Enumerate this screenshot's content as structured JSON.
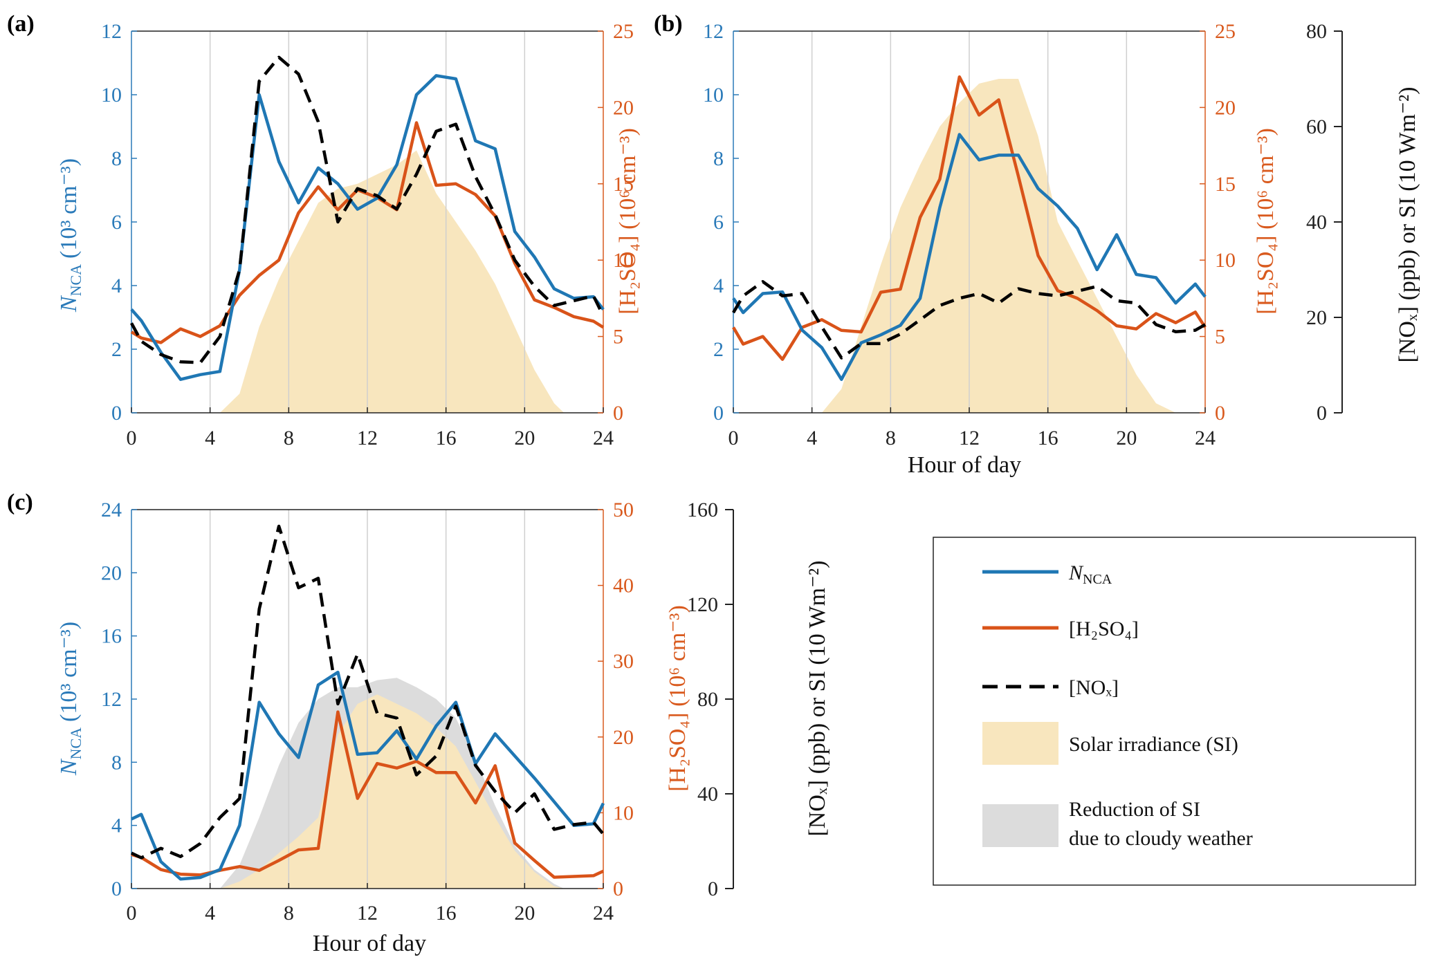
{
  "colors": {
    "nnca": "#1f77b4",
    "h2so4": "#d95319",
    "nox": "#000000",
    "si": "#f8e6be",
    "si_reduction": "#dcdcdc",
    "tick_blue": "#2a7ab9",
    "tick_red": "#d95a1e"
  },
  "chart_data": [
    {
      "panel": "(a)",
      "type": "line",
      "xlabel": "",
      "xlim": [
        0,
        24
      ],
      "xticks": [
        "0",
        "4",
        "8",
        "12",
        "16",
        "20",
        "24"
      ],
      "left_axis": {
        "label_main": "N",
        "label_sub": "NCA",
        "label_unit": "(10³ cm⁻³)",
        "ylim": [
          0,
          12
        ],
        "ticks": [
          "0",
          "2",
          "4",
          "6",
          "8",
          "10",
          "12"
        ]
      },
      "right_axis": {
        "label": "[H₂SO₄] (10⁶ cm⁻³)",
        "ylim": [
          0,
          25
        ],
        "ticks": [
          "0",
          "5",
          "10",
          "15",
          "20",
          "25"
        ]
      },
      "nox_si_axis_ylim": [
        0,
        80
      ],
      "series": [
        {
          "name": "N_NCA",
          "axis": "left",
          "x": [
            0,
            0.5,
            1.5,
            2.5,
            3.5,
            4.5,
            5.5,
            6.5,
            7.5,
            8.5,
            9.5,
            10.5,
            11.5,
            12.5,
            13.5,
            14.5,
            15.5,
            16.5,
            17.5,
            18.5,
            19.5,
            20.5,
            21.5,
            22.5,
            23.5,
            24
          ],
          "y": [
            3.25,
            2.9,
            1.9,
            1.05,
            1.2,
            1.3,
            4.5,
            10.0,
            7.9,
            6.6,
            7.7,
            7.2,
            6.4,
            6.75,
            7.8,
            10.0,
            10.6,
            10.5,
            8.55,
            8.3,
            5.7,
            4.9,
            3.9,
            3.6,
            3.65,
            3.25
          ]
        },
        {
          "name": "[H2SO4]",
          "axis": "right",
          "x": [
            0,
            0.5,
            1.5,
            2.5,
            3.5,
            4.5,
            5.5,
            6.5,
            7.5,
            8.5,
            9.5,
            10.5,
            11.5,
            12.5,
            13.5,
            14.5,
            15.5,
            16.5,
            17.5,
            18.5,
            19.5,
            20.5,
            21.5,
            22.5,
            23.5,
            24
          ],
          "y": [
            5.3,
            4.9,
            4.6,
            5.5,
            5.0,
            5.7,
            7.7,
            9.0,
            10.0,
            13.1,
            14.8,
            13.3,
            14.6,
            14.1,
            13.3,
            19.0,
            14.9,
            15.0,
            14.3,
            12.9,
            9.8,
            7.4,
            6.9,
            6.3,
            6.0,
            5.6
          ]
        },
        {
          "name": "[NOx]",
          "axis": "nox_si",
          "x": [
            0,
            0.5,
            1.5,
            2.5,
            3.5,
            4.5,
            5.5,
            6.5,
            7.5,
            8.5,
            9.5,
            10.5,
            11.5,
            12.5,
            13.5,
            14.5,
            15.5,
            16.5,
            17.5,
            18.5,
            19.5,
            20.5,
            21.5,
            22.5,
            23.5,
            24
          ],
          "y": [
            18.8,
            15.0,
            12.2,
            10.7,
            10.5,
            16.0,
            30.0,
            69.5,
            74.5,
            71.0,
            61.0,
            40.0,
            47.0,
            45.5,
            42.7,
            50.0,
            59.0,
            60.5,
            49.5,
            41.5,
            32.0,
            26.5,
            22.5,
            23.5,
            24.5,
            20.3
          ]
        },
        {
          "name": "Solar irradiance (SI)",
          "axis": "nox_si",
          "kind": "area",
          "x": [
            4.5,
            5.5,
            6.5,
            7.5,
            8.5,
            9.5,
            10.5,
            11.5,
            12.5,
            13.5,
            14.5,
            15.5,
            16.5,
            17.5,
            18.5,
            19.5,
            20.5,
            21.5,
            22.0
          ],
          "y": [
            0,
            4,
            18,
            28,
            36,
            44,
            47,
            48,
            50,
            52,
            55,
            46,
            40,
            34,
            27,
            18,
            9,
            2,
            0
          ]
        }
      ]
    },
    {
      "panel": "(b)",
      "type": "line",
      "xlabel": "Hour of day",
      "xlim": [
        0,
        24
      ],
      "xticks": [
        "0",
        "4",
        "8",
        "12",
        "16",
        "20",
        "24"
      ],
      "left_axis": {
        "ylim": [
          0,
          12
        ],
        "ticks": [
          "0",
          "2",
          "4",
          "6",
          "8",
          "10",
          "12"
        ]
      },
      "right_axis": {
        "label": "[H₂SO₄] (10⁶ cm⁻³)",
        "ylim": [
          0,
          25
        ],
        "ticks": [
          "0",
          "5",
          "10",
          "15",
          "20",
          "25"
        ]
      },
      "third_axis": {
        "label": "[NOₓ] (ppb) or SI (10 Wm⁻²)",
        "ylim": [
          0,
          80
        ],
        "ticks": [
          "0",
          "20",
          "40",
          "60",
          "80"
        ]
      },
      "series": [
        {
          "name": "N_NCA",
          "axis": "left",
          "x": [
            0,
            0.5,
            1.5,
            2.5,
            3.5,
            4.5,
            5.5,
            6.5,
            7.5,
            8.5,
            9.5,
            10.5,
            11.5,
            12.5,
            13.5,
            14.5,
            15.5,
            16.5,
            17.5,
            18.5,
            19.5,
            20.5,
            21.5,
            22.5,
            23.5,
            24
          ],
          "y": [
            3.6,
            3.15,
            3.75,
            3.8,
            2.6,
            2.05,
            1.05,
            2.2,
            2.45,
            2.75,
            3.6,
            6.45,
            8.75,
            7.95,
            8.1,
            8.1,
            7.05,
            6.5,
            5.8,
            4.5,
            5.6,
            4.35,
            4.25,
            3.45,
            4.05,
            3.65
          ]
        },
        {
          "name": "[H2SO4]",
          "axis": "right",
          "x": [
            0,
            0.5,
            1.5,
            2.5,
            3.5,
            4.5,
            5.5,
            6.5,
            7.5,
            8.5,
            9.5,
            10.5,
            11.5,
            12.5,
            13.5,
            14.5,
            15.5,
            16.5,
            17.5,
            18.5,
            19.5,
            20.5,
            21.5,
            22.5,
            23.5,
            24
          ],
          "y": [
            5.6,
            4.5,
            5.0,
            3.5,
            5.6,
            6.1,
            5.4,
            5.3,
            7.9,
            8.1,
            12.8,
            15.3,
            22.0,
            19.5,
            20.5,
            15.5,
            10.3,
            8.0,
            7.5,
            6.7,
            5.7,
            5.5,
            6.5,
            5.9,
            6.6,
            5.6
          ]
        },
        {
          "name": "[NOx]",
          "axis": "third",
          "x": [
            0,
            0.5,
            1.5,
            2.5,
            3.5,
            4.5,
            5.5,
            6.5,
            7.5,
            8.5,
            9.5,
            10.5,
            11.5,
            12.5,
            13.5,
            14.5,
            15.5,
            16.5,
            17.5,
            18.5,
            19.5,
            20.5,
            21.5,
            22.5,
            23.5,
            24
          ],
          "y": [
            21.0,
            24.5,
            27.5,
            24.5,
            25.0,
            18.0,
            11.5,
            14.5,
            14.5,
            16.5,
            19.5,
            22.5,
            24.0,
            25.0,
            23.0,
            26.0,
            25.0,
            24.5,
            25.5,
            26.5,
            23.5,
            23.0,
            18.5,
            17.0,
            17.3,
            18.5
          ]
        },
        {
          "name": "Solar irradiance (SI)",
          "axis": "third",
          "kind": "area",
          "x": [
            4.5,
            5.5,
            6.5,
            7.5,
            8.5,
            9.5,
            10.5,
            11.5,
            12.5,
            13.5,
            14.5,
            15.5,
            16.5,
            17.5,
            18.5,
            19.5,
            20.5,
            21.5,
            22.5
          ],
          "y": [
            0,
            5,
            18,
            31,
            43,
            52,
            60,
            65,
            69,
            70,
            70,
            58,
            40,
            32,
            24,
            16,
            8,
            2,
            0
          ]
        }
      ]
    },
    {
      "panel": "(c)",
      "type": "line",
      "xlabel": "Hour of day",
      "xlim": [
        0,
        24
      ],
      "xticks": [
        "0",
        "4",
        "8",
        "12",
        "16",
        "20",
        "24"
      ],
      "left_axis": {
        "label_main": "N",
        "label_sub": "NCA",
        "label_unit": "(10³ cm⁻³)",
        "ylim": [
          0,
          24
        ],
        "ticks": [
          "0",
          "4",
          "8",
          "12",
          "16",
          "20",
          "24"
        ]
      },
      "right_axis": {
        "label": "[H₂SO₄] (10⁶ cm⁻³)",
        "ylim": [
          0,
          50
        ],
        "ticks": [
          "0",
          "10",
          "20",
          "30",
          "40",
          "50"
        ]
      },
      "third_axis": {
        "label": "[NOₓ] (ppb) or SI (10 Wm⁻²)",
        "ylim": [
          0,
          160
        ],
        "ticks": [
          "0",
          "40",
          "80",
          "120",
          "160"
        ]
      },
      "series": [
        {
          "name": "N_NCA",
          "axis": "left",
          "x": [
            0,
            0.5,
            1.5,
            2.5,
            3.5,
            4.5,
            5.5,
            6.5,
            7.5,
            8.5,
            9.5,
            10.5,
            11.5,
            12.5,
            13.5,
            14.5,
            15.5,
            16.5,
            17.5,
            18.5,
            19.5,
            20.5,
            21.5,
            22.5,
            23.5,
            24
          ],
          "y": [
            4.4,
            4.7,
            1.7,
            0.6,
            0.7,
            1.2,
            4.0,
            11.8,
            9.8,
            8.3,
            12.9,
            13.7,
            8.5,
            8.6,
            10.0,
            8.2,
            10.3,
            11.8,
            7.9,
            9.8,
            8.4,
            7.0,
            5.5,
            4.0,
            4.1,
            5.4
          ]
        },
        {
          "name": "[H2SO4]",
          "axis": "right",
          "x": [
            0,
            0.5,
            1.5,
            2.5,
            3.5,
            4.5,
            5.5,
            6.5,
            7.5,
            8.5,
            9.5,
            10.5,
            11.5,
            12.5,
            13.5,
            14.5,
            15.5,
            16.5,
            17.5,
            18.5,
            19.5,
            20.5,
            21.5,
            22.5,
            23.5,
            24
          ],
          "y": [
            4.5,
            4.1,
            2.5,
            1.9,
            1.8,
            2.4,
            2.9,
            2.4,
            3.7,
            5.1,
            5.3,
            23.3,
            11.9,
            16.5,
            15.9,
            16.8,
            15.3,
            15.3,
            11.3,
            16.2,
            6.0,
            3.7,
            1.5,
            1.6,
            1.7,
            2.3
          ]
        },
        {
          "name": "[NOx]",
          "axis": "third",
          "x": [
            0,
            0.5,
            1.5,
            2.5,
            3.5,
            4.5,
            5.5,
            6.5,
            7.5,
            8.5,
            9.5,
            10.5,
            11.5,
            12.5,
            13.5,
            14.5,
            15.5,
            16.5,
            17.5,
            18.5,
            19.5,
            20.5,
            21.5,
            22.5,
            23.5,
            24
          ],
          "y": [
            15.0,
            13.0,
            17.0,
            13.5,
            19.0,
            30.0,
            38.0,
            118.0,
            153.0,
            127.0,
            131.0,
            78.0,
            99.0,
            74.0,
            72.0,
            48.0,
            56.0,
            77.0,
            52.0,
            41.0,
            32.0,
            40.0,
            25.0,
            27.0,
            28.0,
            23.0
          ]
        },
        {
          "name": "Reduction of SI due to cloudy weather",
          "axis": "third",
          "kind": "area",
          "x": [
            4.5,
            5.5,
            6.5,
            7.5,
            8.5,
            9.5,
            10.5,
            11.5,
            12.5,
            13.5,
            14.5,
            15.5,
            16.5,
            17.5,
            18.5,
            19.5,
            20.5,
            21.5,
            22.0
          ],
          "y": [
            0,
            10,
            30,
            52,
            70,
            80,
            85,
            85,
            88,
            89,
            85,
            80,
            72,
            55,
            35,
            18,
            8,
            2,
            0
          ]
        },
        {
          "name": "Solar irradiance (SI)",
          "axis": "third",
          "kind": "area",
          "x": [
            4.5,
            5.5,
            6.5,
            7.5,
            8.5,
            9.5,
            10.5,
            11.5,
            12.5,
            13.5,
            14.5,
            15.5,
            16.5,
            17.5,
            18.5,
            19.5,
            20.5,
            21.5,
            22.0
          ],
          "y": [
            0,
            3,
            8,
            15,
            22,
            30,
            65,
            78,
            82,
            78,
            74,
            68,
            60,
            45,
            30,
            16,
            7,
            1,
            0
          ]
        }
      ]
    }
  ],
  "legend": {
    "items": [
      {
        "key": "nnca",
        "main": "N",
        "sub": "NCA"
      },
      {
        "key": "h2so4",
        "label": "[H₂SO₄]"
      },
      {
        "key": "nox",
        "label": "[NOₓ]"
      },
      {
        "key": "si",
        "label": "Solar irradiance (SI)"
      },
      {
        "key": "si_reduction",
        "line1": "Reduction of SI",
        "line2": "due to cloudy weather"
      }
    ]
  }
}
